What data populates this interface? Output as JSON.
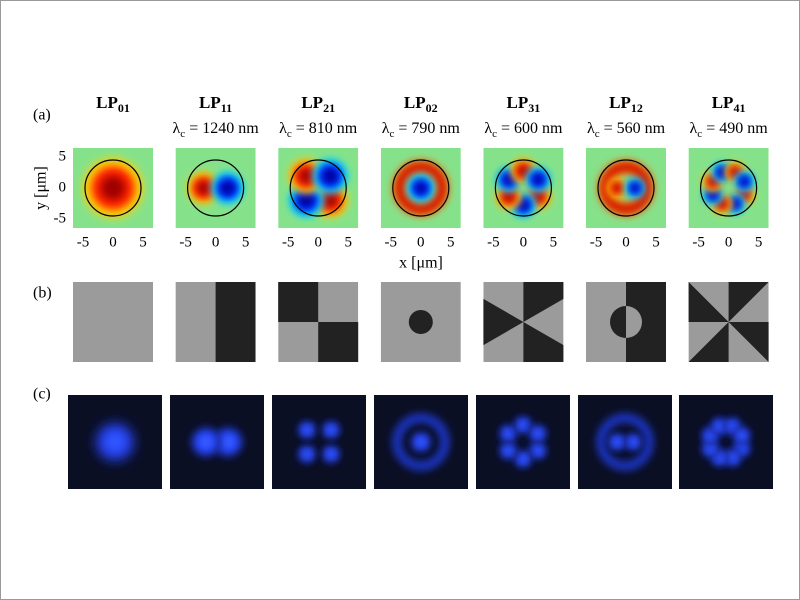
{
  "panel_labels": [
    "(a)",
    "(b)",
    "(c)"
  ],
  "modes": [
    {
      "name": "LP",
      "sub": "01"
    },
    {
      "name": "LP",
      "sub": "11",
      "cutoff": " = 1240 nm"
    },
    {
      "name": "LP",
      "sub": "21",
      "cutoff": " = 810 nm"
    },
    {
      "name": "LP",
      "sub": "02",
      "cutoff": " = 790 nm"
    },
    {
      "name": "LP",
      "sub": "31",
      "cutoff": " = 600 nm"
    },
    {
      "name": "LP",
      "sub": "12",
      "cutoff": " = 560 nm"
    },
    {
      "name": "LP",
      "sub": "41",
      "cutoff": " = 490 nm"
    }
  ],
  "lambda": "λ",
  "lambda_sub": "c",
  "y_label": "y [μm]",
  "x_label": "x [μm]",
  "y_ticks": [
    "5",
    "0",
    "-5"
  ],
  "x_ticks": [
    "-5",
    "0",
    "5"
  ]
}
